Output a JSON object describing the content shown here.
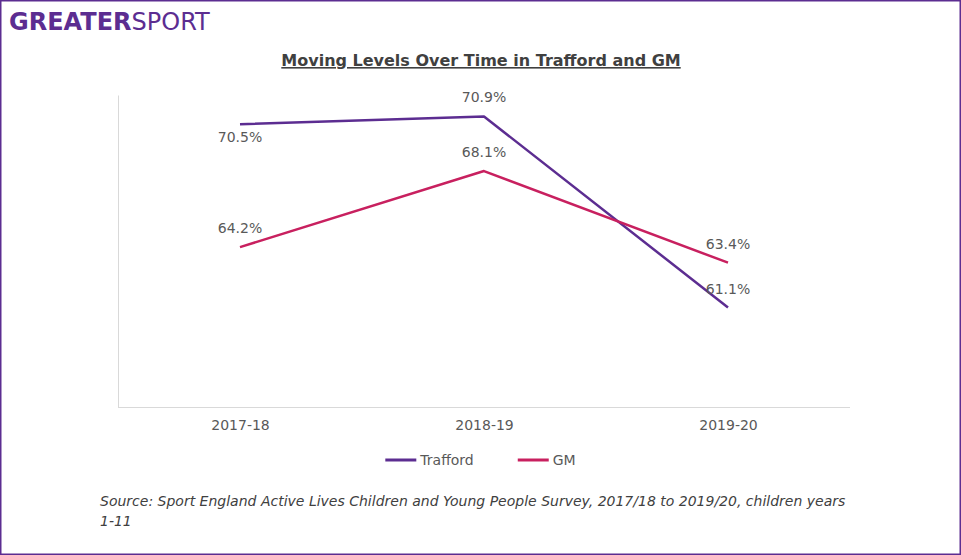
{
  "logo": [
    "GREATER",
    "SPORT"
  ],
  "chart_data": {
    "type": "line",
    "title": "Moving Levels Over Time in Trafford and GM",
    "categories": [
      "2017-18",
      "2018-19",
      "2019-20"
    ],
    "series": [
      {
        "name": "Trafford",
        "color": "#5c2d91",
        "values": [
          70.5,
          70.9,
          61.1
        ],
        "value_labels": [
          "70.5%",
          "70.9%",
          "61.1%"
        ]
      },
      {
        "name": "GM",
        "color": "#c8205f",
        "values": [
          64.2,
          68.1,
          63.4
        ],
        "value_labels": [
          "64.2%",
          "68.1%",
          "63.4%"
        ]
      }
    ],
    "ylim": [
      56,
      72
    ],
    "yticks": [],
    "tick_labels": "x",
    "data_labels": true,
    "legend": "bottom",
    "source": "Source: Sport England Active Lives Children and Young People Survey, 2017/18 to 2019/20, children years 1-11"
  }
}
